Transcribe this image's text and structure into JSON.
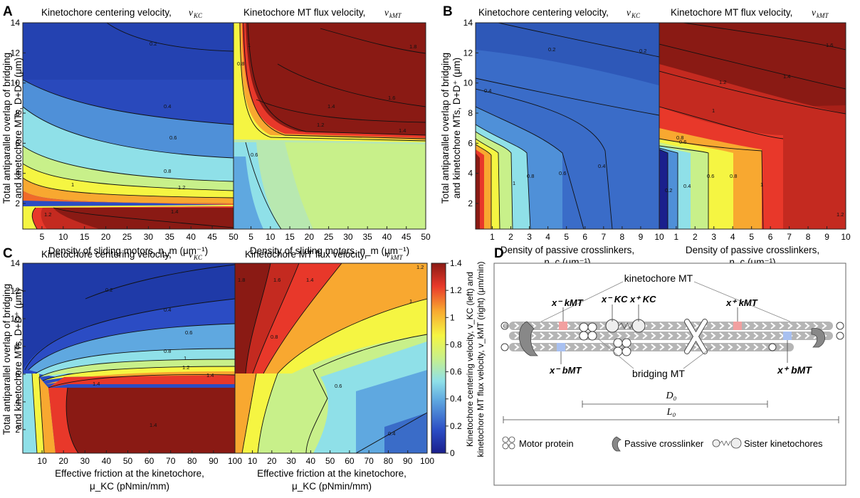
{
  "panels": {
    "A": {
      "letter": "A",
      "ylabel_line1": "Total antiparallel overlap of bridging",
      "ylabel_line2": "and kinetochore MTs, D+D⁺ (μm)",
      "left": {
        "title": "Kinetochore centering velocity, v_KC",
        "title_plain": "Kinetochore centering velocity,",
        "title_sym": "v",
        "title_sub": "KC",
        "xticks": [
          "5",
          "10",
          "15",
          "20",
          "25",
          "30",
          "35",
          "40",
          "45",
          "50"
        ],
        "xlabel": "Density of sliding motors, n_m (μm⁻¹)"
      },
      "right": {
        "title_plain": "Kinetochore MT flux velocity,",
        "title_sym": "v",
        "title_sub": "kMT",
        "xticks": [
          "5",
          "10",
          "15",
          "20",
          "25",
          "30",
          "35",
          "40",
          "45",
          "50"
        ],
        "xlabel": "Density of sliding motors, n_m (μm⁻¹)"
      },
      "yticks": [
        "14",
        "12",
        "10",
        "8",
        "6",
        "4",
        "2"
      ]
    },
    "B": {
      "letter": "B",
      "ylabel_line1": "Total antiparallel overlap of bridging",
      "ylabel_line2": "and kinetochore MTs, D+D⁺ (μm)",
      "left": {
        "title_plain": "Kinetochore centering velocity,",
        "title_sym": "v",
        "title_sub": "KC",
        "xticks": [
          "1",
          "2",
          "3",
          "4",
          "5",
          "6",
          "7",
          "8",
          "9",
          "10"
        ],
        "xlabel_line1": "Density of passive crosslinkers,",
        "xlabel_line2": "n_c (μm⁻¹)"
      },
      "right": {
        "title_plain": "Kinetochore MT flux velocity,",
        "title_sym": "v",
        "title_sub": "kMT",
        "xticks": [
          "1",
          "2",
          "3",
          "4",
          "5",
          "6",
          "7",
          "8",
          "9",
          "10"
        ],
        "xlabel_line1": "Density of passive crosslinkers,",
        "xlabel_line2": "n_c (μm⁻¹)"
      },
      "yticks": [
        "14",
        "12",
        "10",
        "8",
        "6",
        "4",
        "2"
      ]
    },
    "C": {
      "letter": "C",
      "ylabel_line1": "Total antiparallel overlap of bridging",
      "ylabel_line2": "and kinetochore MTs, D+D⁺ (μm)",
      "left": {
        "title_plain": "Kinetochore centering velocity,",
        "title_sym": "v",
        "title_sub": "KC",
        "xticks": [
          "10",
          "20",
          "30",
          "40",
          "50",
          "60",
          "70",
          "80",
          "90",
          "100"
        ],
        "xlabel_line1": "Effective friction at the kinetochore,",
        "xlabel_line2": "μ_KC (pNmin/mm)"
      },
      "right": {
        "title_plain": "Kinetochore MT flux velocity,",
        "title_sym": "v",
        "title_sub": "kMT",
        "xticks": [
          "10",
          "20",
          "30",
          "40",
          "50",
          "60",
          "70",
          "80",
          "90",
          "100"
        ],
        "xlabel_line1": "Effective friction at the kinetochore,",
        "xlabel_line2": "μ_KC (pNmin/mm)"
      },
      "yticks": [
        "14",
        "12",
        "10",
        "8",
        "6",
        "4",
        "2"
      ]
    },
    "D": {
      "letter": "D",
      "label_kinetochore_mt": "kinetochore MT",
      "label_bridging_mt": "bridging MT",
      "label_D0": "D₀",
      "label_L0": "L₀",
      "legend_motor": "Motor protein",
      "legend_passive": "Passive crosslinker",
      "legend_sister": "Sister kinetochores",
      "sym_xkMT_minus": "x⁻ kMT",
      "sym_xKC_minus": "x⁻ KC",
      "sym_xKC_plus": "x⁺ KC",
      "sym_xkMT_plus": "x⁺ kMT",
      "sym_xbMT_minus": "x⁻ bMT",
      "sym_xbMT_plus": "x⁺ bMT"
    }
  },
  "colorbar": {
    "ticks": [
      "1.4",
      "1.2",
      "1",
      "0.8",
      "0.6",
      "0.4",
      "0.2",
      "0"
    ],
    "label_line1": "Kinetochore centering velocity, v_KC (left) and",
    "label_line2": "kinetochore MT flux velocity, v_kMT (right) (μm/min)"
  },
  "chart_data": [
    {
      "panel": "A-left",
      "type": "heatmap",
      "title": "Kinetochore centering velocity, v_KC",
      "xlabel": "Density of sliding motors, n_m (μm⁻¹)",
      "ylabel": "Total antiparallel overlap of bridging and kinetochore MTs, D+D⁺ (μm)",
      "xlim": [
        0.5,
        50
      ],
      "ylim": [
        0.3,
        14
      ],
      "zlim": [
        0,
        1.4
      ],
      "contour_levels": [
        0.2,
        0.4,
        0.6,
        0.8,
        1,
        1.2,
        1.4
      ]
    },
    {
      "panel": "A-right",
      "type": "heatmap",
      "title": "Kinetochore MT flux velocity, v_kMT",
      "xlabel": "Density of sliding motors, n_m (μm⁻¹)",
      "xlim": [
        0.5,
        50
      ],
      "ylim": [
        0.3,
        14
      ],
      "zlim": [
        0,
        1.4
      ],
      "contour_levels": [
        0.4,
        0.6,
        0.8,
        1,
        1.2,
        1.4,
        1.6,
        1.8
      ]
    },
    {
      "panel": "B-left",
      "type": "heatmap",
      "title": "Kinetochore centering velocity, v_KC",
      "xlabel": "Density of passive crosslinkers, n_c (μm⁻¹)",
      "xlim": [
        0.1,
        10
      ],
      "ylim": [
        0.3,
        14
      ],
      "zlim": [
        0,
        1.4
      ],
      "contour_levels": [
        0.2,
        0.4,
        0.6,
        0.8,
        1,
        1.2,
        1.4
      ]
    },
    {
      "panel": "B-right",
      "type": "heatmap",
      "title": "Kinetochore MT flux velocity, v_kMT",
      "xlabel": "Density of passive crosslinkers, n_c (μm⁻¹)",
      "xlim": [
        0.1,
        10
      ],
      "ylim": [
        0.3,
        14
      ],
      "zlim": [
        0,
        1.4
      ],
      "contour_levels": [
        0.2,
        0.4,
        0.6,
        0.8,
        1,
        1.2,
        1.4,
        1.6
      ]
    },
    {
      "panel": "C-left",
      "type": "heatmap",
      "title": "Kinetochore centering velocity, v_KC",
      "xlabel": "Effective friction at the kinetochore, μ_KC (pNmin/mm)",
      "xlim": [
        1,
        100
      ],
      "ylim": [
        0.3,
        14
      ],
      "zlim": [
        0,
        1.4
      ],
      "contour_levels": [
        0.2,
        0.4,
        0.6,
        0.8,
        1,
        1.2,
        1.4
      ]
    },
    {
      "panel": "C-right",
      "type": "heatmap",
      "title": "Kinetochore MT flux velocity, v_kMT",
      "xlabel": "Effective friction at the kinetochore, μ_KC (pNmin/mm)",
      "xlim": [
        1,
        100
      ],
      "ylim": [
        0.3,
        14
      ],
      "zlim": [
        0,
        1.4
      ],
      "contour_levels": [
        0.4,
        0.6,
        0.8,
        1,
        1.2,
        1.4,
        1.6,
        1.8
      ]
    }
  ]
}
